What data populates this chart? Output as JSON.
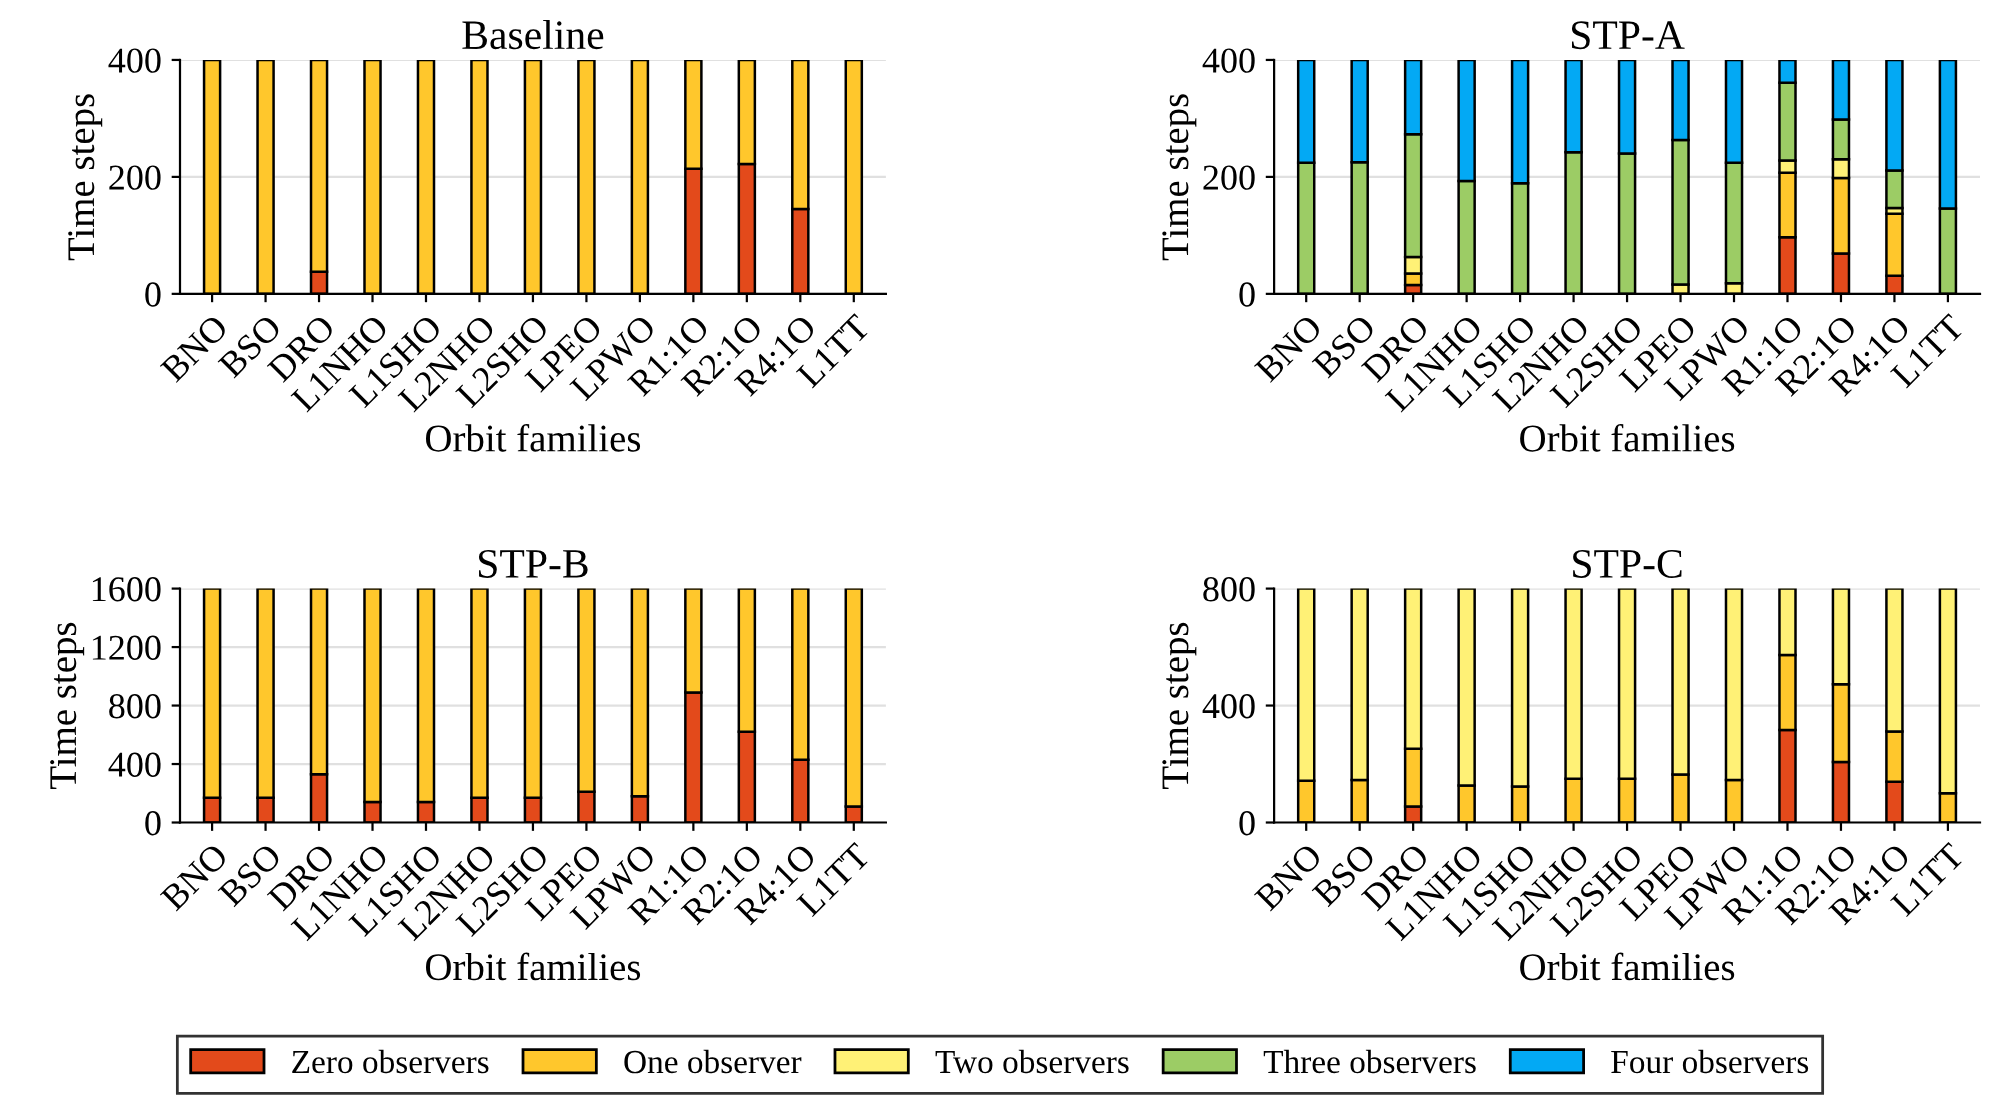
{
  "chart_data": [
    {
      "type": "bar",
      "title": "Baseline",
      "xlabel": "Orbit families",
      "ylabel": "Time steps",
      "stacked": true,
      "grid": "y",
      "legend": "bottom",
      "ylim": [
        0,
        400
      ],
      "yticks": [
        0,
        200,
        400
      ],
      "categories": [
        "BNO",
        "BSO",
        "DRO",
        "L1NHO",
        "L1SHO",
        "L2NHO",
        "L2SHO",
        "LPEO",
        "LPWO",
        "R1:1O",
        "R2:1O",
        "R4:1O",
        "L1TT"
      ],
      "series": [
        {
          "name": "Zero observers",
          "color": "#e34a1b",
          "values": [
            0,
            0,
            38,
            0,
            0,
            0,
            0,
            0,
            0,
            214,
            222,
            145,
            0
          ]
        },
        {
          "name": "One observer",
          "color": "#ffc72c",
          "values": [
            400,
            400,
            362,
            400,
            400,
            400,
            400,
            400,
            400,
            186,
            178,
            255,
            400
          ]
        }
      ]
    },
    {
      "type": "bar",
      "title": "STP-A",
      "xlabel": "Orbit families",
      "ylabel": "Time steps",
      "stacked": true,
      "grid": "y",
      "legend": "bottom",
      "ylim": [
        0,
        400
      ],
      "yticks": [
        0,
        200,
        400
      ],
      "categories": [
        "BNO",
        "BSO",
        "DRO",
        "L1NHO",
        "L1SHO",
        "L2NHO",
        "L2SHO",
        "LPEO",
        "LPWO",
        "R1:1O",
        "R2:1O",
        "R4:1O",
        "L1TT"
      ],
      "series": [
        {
          "name": "Zero observers",
          "color": "#e34a1b",
          "values": [
            0,
            0,
            15,
            0,
            0,
            0,
            0,
            0,
            0,
            97,
            69,
            31,
            0
          ]
        },
        {
          "name": "One observer",
          "color": "#ffc72c",
          "values": [
            0,
            0,
            20,
            0,
            0,
            0,
            0,
            0,
            0,
            110,
            129,
            106,
            0
          ]
        },
        {
          "name": "Two observers",
          "color": "#fff176",
          "values": [
            0,
            0,
            28,
            0,
            0,
            0,
            0,
            16,
            18,
            21,
            32,
            10,
            0
          ]
        },
        {
          "name": "Three observers",
          "color": "#9ccc65",
          "values": [
            224,
            225,
            210,
            193,
            189,
            242,
            240,
            247,
            206,
            133,
            68,
            64,
            146
          ]
        },
        {
          "name": "Four observers",
          "color": "#03a9f4",
          "values": [
            176,
            175,
            127,
            207,
            211,
            158,
            160,
            137,
            176,
            39,
            102,
            189,
            254
          ]
        }
      ]
    },
    {
      "type": "bar",
      "title": "STP-B",
      "xlabel": "Orbit families",
      "ylabel": "Time steps",
      "stacked": true,
      "grid": "y",
      "legend": "bottom",
      "ylim": [
        0,
        1600
      ],
      "yticks": [
        0,
        400,
        800,
        1200,
        1600
      ],
      "categories": [
        "BNO",
        "BSO",
        "DRO",
        "L1NHO",
        "L1SHO",
        "L2NHO",
        "L2SHO",
        "LPEO",
        "LPWO",
        "R1:1O",
        "R2:1O",
        "R4:1O",
        "L1TT"
      ],
      "series": [
        {
          "name": "Zero observers",
          "color": "#e34a1b",
          "values": [
            170,
            170,
            330,
            140,
            140,
            170,
            170,
            210,
            180,
            890,
            620,
            430,
            110
          ]
        },
        {
          "name": "One observer",
          "color": "#ffc72c",
          "values": [
            1430,
            1430,
            1270,
            1460,
            1460,
            1430,
            1430,
            1390,
            1420,
            710,
            980,
            1170,
            1490
          ]
        }
      ]
    },
    {
      "type": "bar",
      "title": "STP-C",
      "xlabel": "Orbit families",
      "ylabel": "Time steps",
      "stacked": true,
      "grid": "y",
      "legend": "bottom",
      "ylim": [
        0,
        800
      ],
      "yticks": [
        0,
        400,
        800
      ],
      "categories": [
        "BNO",
        "BSO",
        "DRO",
        "L1NHO",
        "L1SHO",
        "L2NHO",
        "L2SHO",
        "LPEO",
        "LPWO",
        "R1:1O",
        "R2:1O",
        "R4:1O",
        "L1TT"
      ],
      "series": [
        {
          "name": "Zero observers",
          "color": "#e34a1b",
          "values": [
            0,
            0,
            55,
            0,
            0,
            0,
            0,
            0,
            0,
            316,
            207,
            139,
            0
          ]
        },
        {
          "name": "One observer",
          "color": "#ffc72c",
          "values": [
            143,
            145,
            197,
            127,
            123,
            150,
            150,
            164,
            145,
            257,
            266,
            172,
            100
          ]
        },
        {
          "name": "Two observers",
          "color": "#fff176",
          "values": [
            657,
            655,
            548,
            673,
            677,
            650,
            650,
            636,
            655,
            227,
            327,
            489,
            700
          ]
        }
      ]
    }
  ]
}
